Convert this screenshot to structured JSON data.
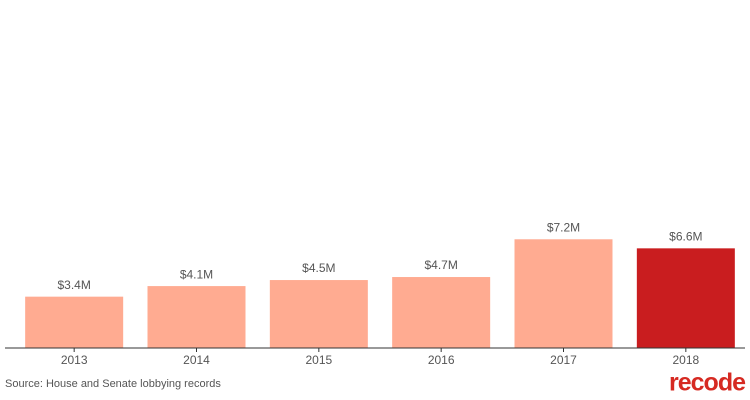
{
  "chart_data": {
    "type": "bar",
    "categories": [
      "2013",
      "2014",
      "2015",
      "2016",
      "2017",
      "2018"
    ],
    "values": [
      3.4,
      4.1,
      4.5,
      4.7,
      7.2,
      6.6
    ],
    "value_labels": [
      "$3.4M",
      "$4.1M",
      "$4.5M",
      "$4.7M",
      "$7.2M",
      "$6.6M"
    ],
    "colors": [
      "#ffab91",
      "#ffab91",
      "#ffab91",
      "#ffab91",
      "#ffab91",
      "#c91d1f"
    ],
    "source": "Source: House and Senate lobbying records",
    "logo": "recode"
  }
}
